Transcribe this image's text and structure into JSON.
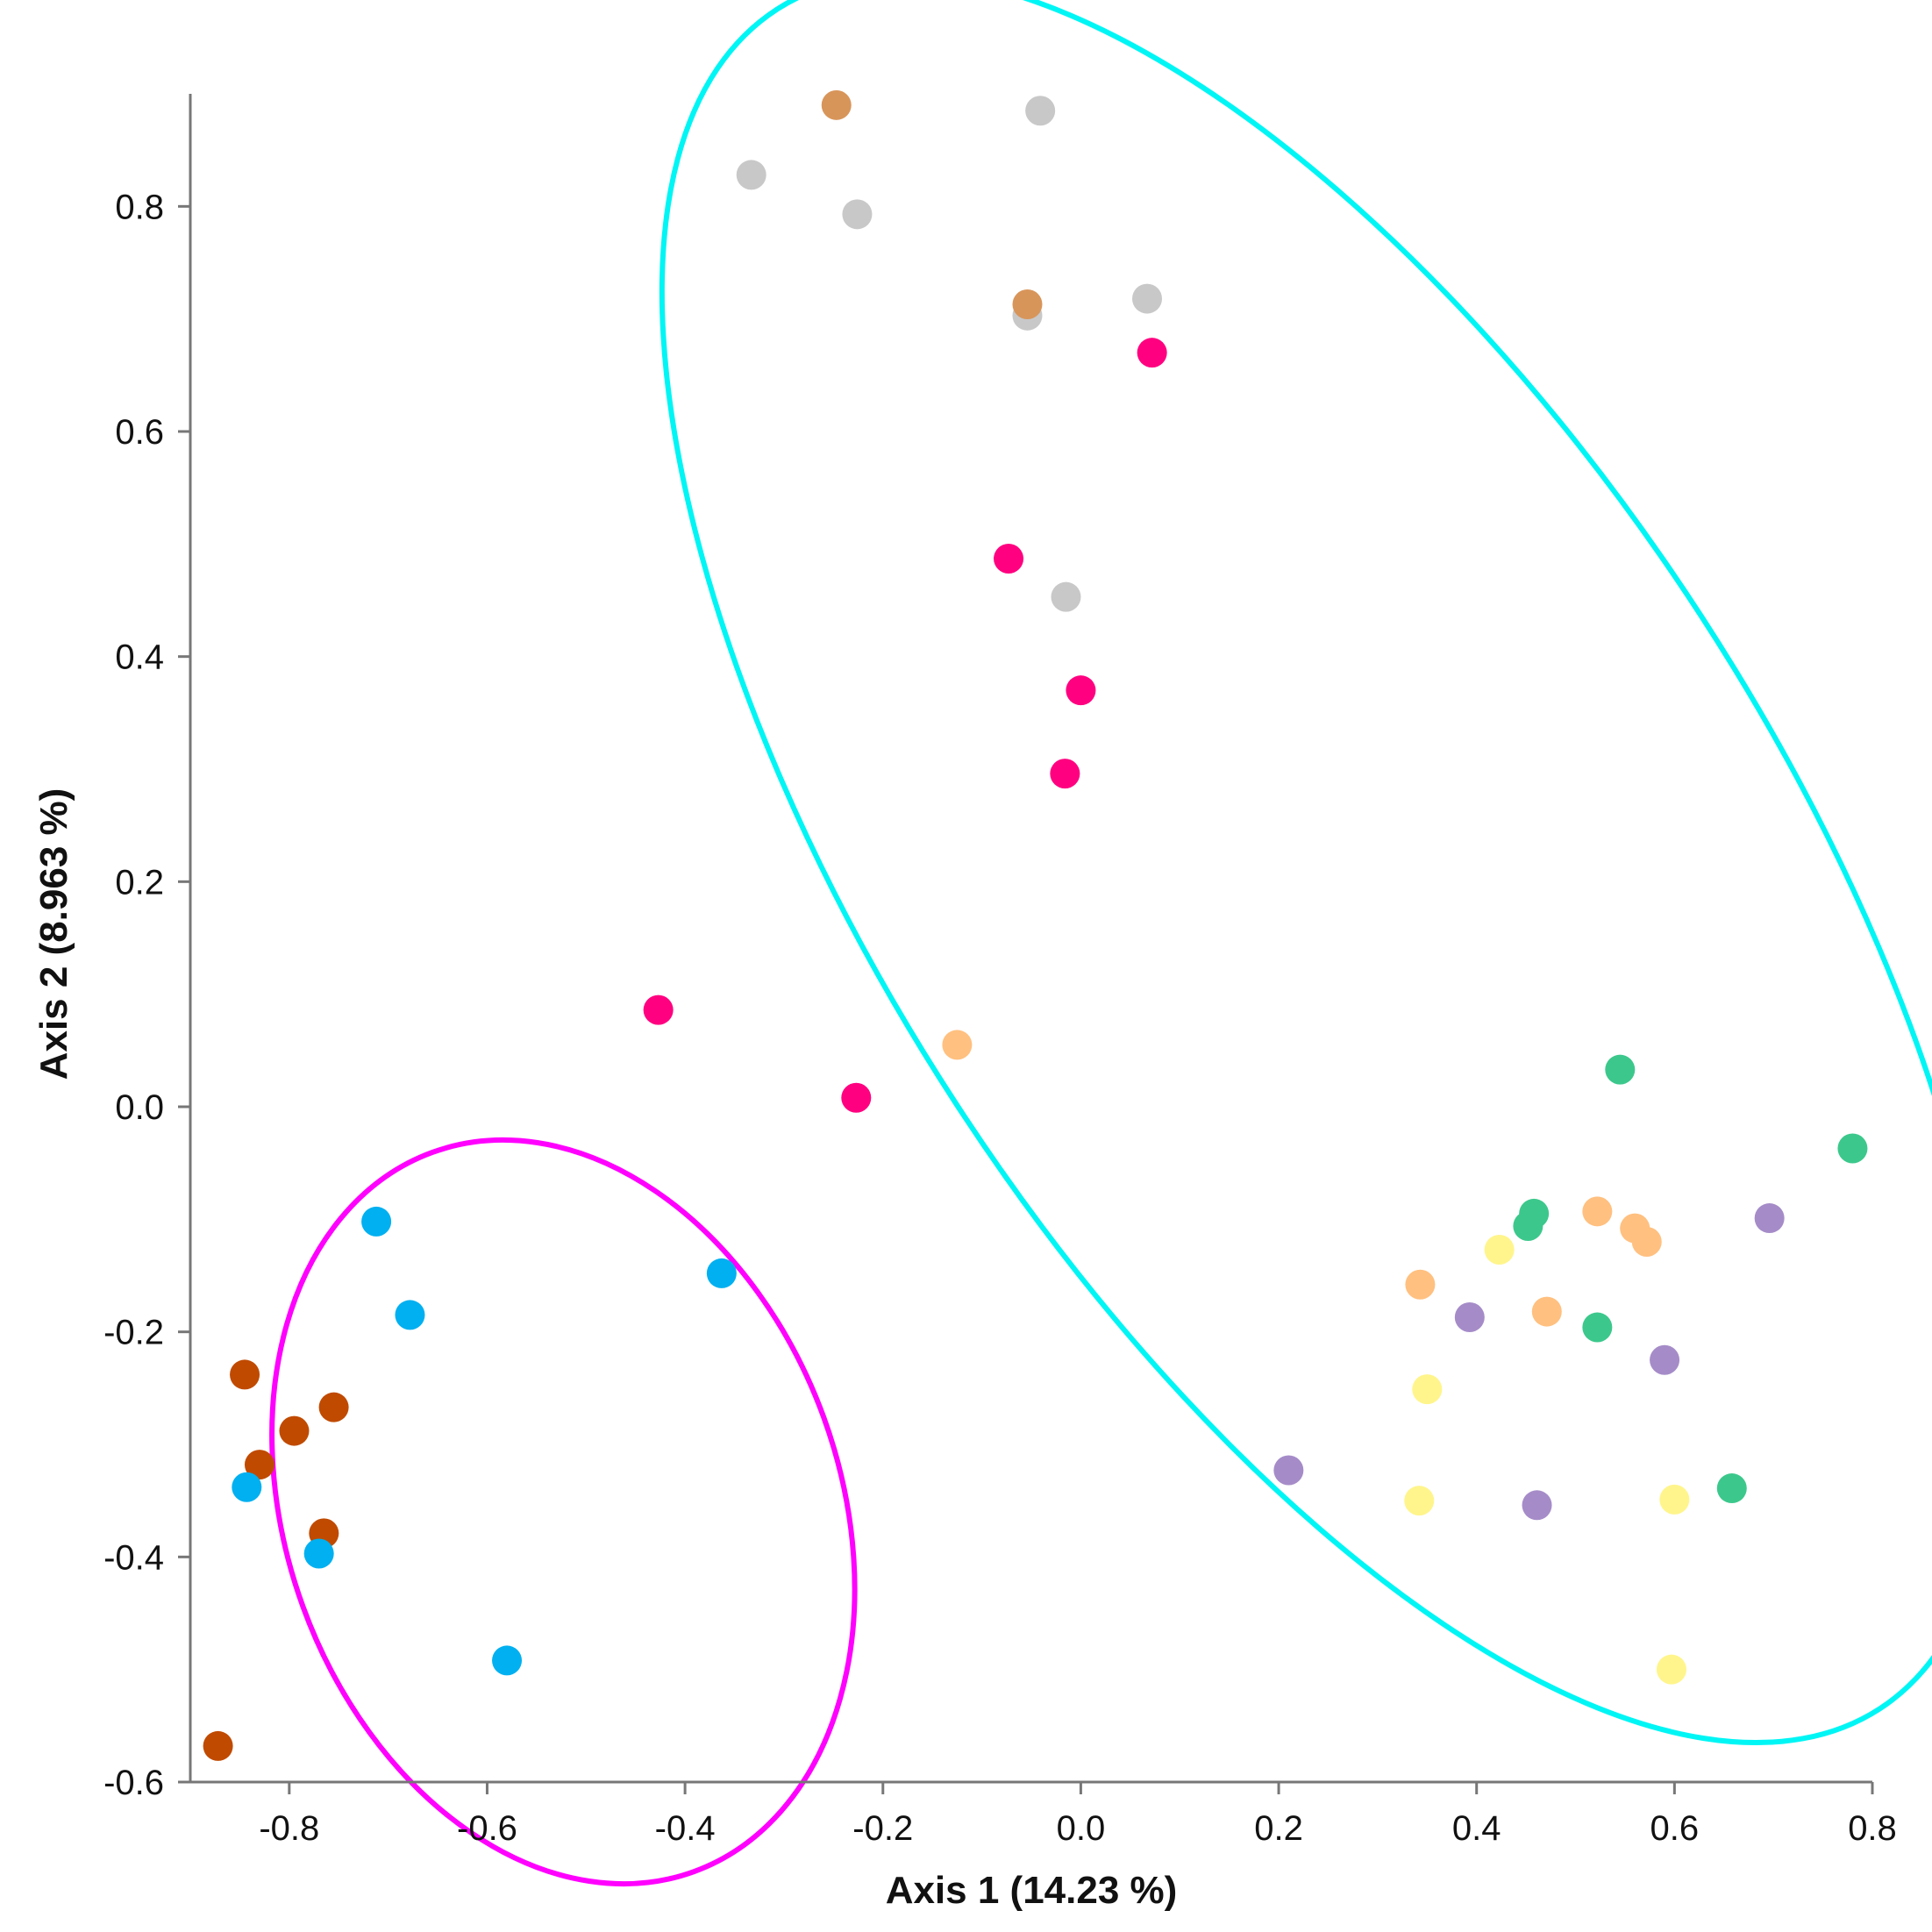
{
  "chart_data": {
    "type": "scatter",
    "title": "",
    "xlabel": "Axis 1 (14.23 %)",
    "ylabel": "Axis 2 (8.963 %)",
    "xlim": [
      -0.9,
      0.8
    ],
    "ylim": [
      -0.6,
      0.9
    ],
    "xticks": [
      -0.8,
      -0.6,
      -0.4,
      -0.2,
      0.0,
      0.2,
      0.4,
      0.6,
      0.8
    ],
    "yticks": [
      -0.6,
      -0.4,
      -0.2,
      0.0,
      0.2,
      0.4,
      0.6,
      0.8
    ],
    "xtick_labels": [
      "-0.8",
      "-0.6",
      "-0.4",
      "-0.2",
      "0.0",
      "0.2",
      "0.4",
      "0.6",
      "0.8"
    ],
    "ytick_labels": [
      "-0.6",
      "-0.4",
      "-0.2",
      "0.0",
      "0.2",
      "0.4",
      "0.6",
      "0.8"
    ],
    "grid": false,
    "legend": null,
    "series": [
      {
        "name": "brown",
        "color": "#c04a00",
        "points": [
          [
            -0.845,
            -0.238
          ],
          [
            -0.755,
            -0.267
          ],
          [
            -0.795,
            -0.288
          ],
          [
            -0.83,
            -0.318
          ],
          [
            -0.765,
            -0.379
          ],
          [
            -0.872,
            -0.568
          ]
        ]
      },
      {
        "name": "blue",
        "color": "#00b0f0",
        "points": [
          [
            -0.712,
            -0.102
          ],
          [
            -0.678,
            -0.185
          ],
          [
            -0.363,
            -0.148
          ],
          [
            -0.843,
            -0.338
          ],
          [
            -0.77,
            -0.397
          ],
          [
            -0.58,
            -0.492
          ]
        ]
      },
      {
        "name": "magenta",
        "color": "#ff0080",
        "points": [
          [
            0.072,
            0.67
          ],
          [
            -0.073,
            0.487
          ],
          [
            0.0,
            0.37
          ],
          [
            -0.016,
            0.296
          ],
          [
            -0.427,
            0.086
          ],
          [
            -0.227,
            0.008
          ]
        ]
      },
      {
        "name": "grey",
        "color": "#c8c8c8",
        "points": [
          [
            -0.041,
            0.885
          ],
          [
            -0.333,
            0.828
          ],
          [
            -0.226,
            0.793
          ],
          [
            0.067,
            0.718
          ],
          [
            -0.054,
            0.703
          ],
          [
            -0.015,
            0.453
          ]
        ]
      },
      {
        "name": "tan",
        "color": "#d8955a",
        "points": [
          [
            -0.247,
            0.89
          ],
          [
            -0.054,
            0.713
          ]
        ]
      },
      {
        "name": "light-orange",
        "color": "#ffc080",
        "points": [
          [
            -0.125,
            0.055
          ],
          [
            0.522,
            -0.093
          ],
          [
            0.56,
            -0.108
          ],
          [
            0.572,
            -0.12
          ],
          [
            0.343,
            -0.158
          ],
          [
            0.471,
            -0.182
          ]
        ]
      },
      {
        "name": "green",
        "color": "#3cc88c",
        "points": [
          [
            0.545,
            0.033
          ],
          [
            0.78,
            -0.037
          ],
          [
            0.458,
            -0.095
          ],
          [
            0.452,
            -0.106
          ],
          [
            0.522,
            -0.196
          ],
          [
            0.658,
            -0.339
          ]
        ]
      },
      {
        "name": "purple",
        "color": "#a58cc8",
        "points": [
          [
            0.696,
            -0.099
          ],
          [
            0.393,
            -0.187
          ],
          [
            0.59,
            -0.225
          ],
          [
            0.21,
            -0.323
          ],
          [
            0.461,
            -0.354
          ]
        ]
      },
      {
        "name": "yellow",
        "color": "#fff58c",
        "points": [
          [
            0.423,
            -0.127
          ],
          [
            0.35,
            -0.251
          ],
          [
            0.342,
            -0.35
          ],
          [
            0.6,
            -0.349
          ],
          [
            0.597,
            -0.5
          ]
        ]
      }
    ],
    "ellipses": [
      {
        "name": "cluster-left",
        "color": "#ff00ff",
        "center": [
          -0.523,
          -0.36
        ],
        "rx_data": 0.28,
        "ry_data": 0.34,
        "rotation_deg": -20
      },
      {
        "name": "cluster-right",
        "color": "#00f5f5",
        "center": [
          0.25,
          0.22
        ],
        "rx_data": 0.45,
        "ry_data": 0.9,
        "rotation_deg": -33
      }
    ]
  }
}
